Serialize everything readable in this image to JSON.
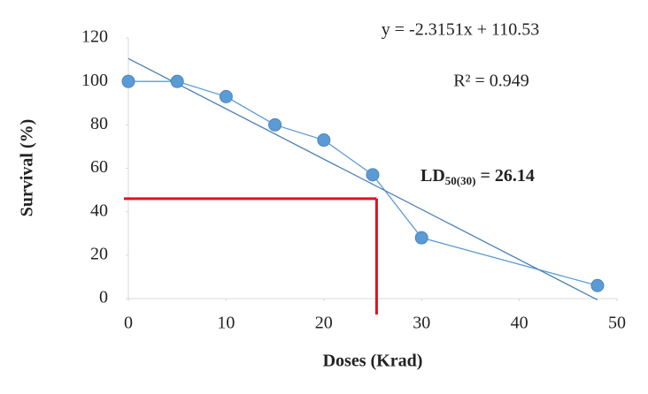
{
  "chart_data": {
    "type": "scatter",
    "x_label": "Doses (Krad)",
    "y_label": "Survival (%)",
    "xlim": [
      0,
      50
    ],
    "xticks": [
      0,
      10,
      20,
      30,
      40,
      50
    ],
    "ylim": [
      0,
      120
    ],
    "yticks": [
      0,
      20,
      40,
      60,
      80,
      100,
      120
    ],
    "series": [
      {
        "color": "#5b9bd5",
        "x": [
          0,
          5,
          10,
          15,
          20,
          25,
          30,
          48
        ],
        "values": [
          100,
          100,
          93,
          80,
          73,
          57,
          28,
          6
        ]
      }
    ],
    "trendline": {
      "equation": "y = -2.3151x + 110.53",
      "r2": "R² = 0.949",
      "slope": -2.3151,
      "intercept": 110.53,
      "color": "#4a7fb5"
    },
    "annotation": {
      "main": "LD",
      "sub": "50(30)",
      "rest": " = 26.14"
    },
    "reference_lines": {
      "x": 25.4,
      "y": 46,
      "color": "#e3101a"
    }
  }
}
